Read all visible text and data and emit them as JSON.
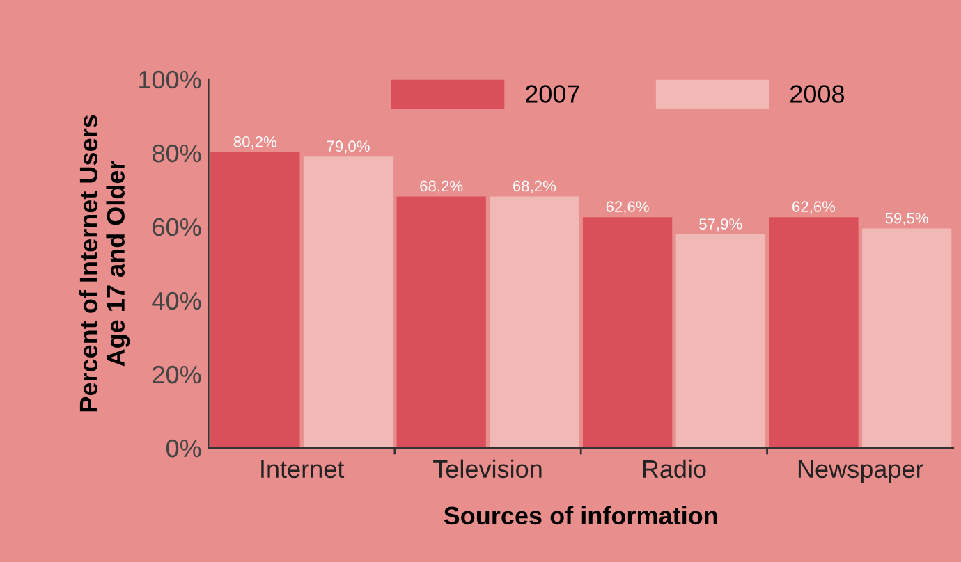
{
  "chart_data": {
    "type": "bar",
    "xlabel": "Sources of information",
    "ylabel": "Percent of Internet Users\nAge 17 and Older",
    "categories": [
      "Internet",
      "Television",
      "Radio",
      "Newspaper"
    ],
    "series": [
      {
        "name": "2007",
        "color": "#d9505a",
        "values": [
          80.2,
          68.2,
          62.6,
          62.6
        ],
        "value_labels": [
          "80,2%",
          "68,2%",
          "62,6%",
          "62,6%"
        ]
      },
      {
        "name": "2008",
        "color": "#f1b9b5",
        "values": [
          79.0,
          68.2,
          57.9,
          59.5
        ],
        "value_labels": [
          "79,0%",
          "68,2%",
          "57,9%",
          "59,5%"
        ]
      }
    ],
    "ylim": [
      0,
      100
    ],
    "yticks": [
      {
        "value": 0,
        "label": "0%"
      },
      {
        "value": 20,
        "label": "20%"
      },
      {
        "value": 40,
        "label": "40%"
      },
      {
        "value": 60,
        "label": "60%"
      },
      {
        "value": 80,
        "label": "80%"
      },
      {
        "value": 100,
        "label": "100%"
      }
    ],
    "legend": "top",
    "grid": false
  }
}
